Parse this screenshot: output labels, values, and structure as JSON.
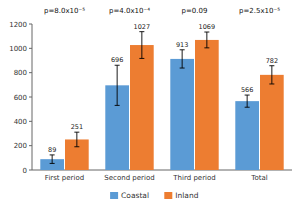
{
  "chart_data": {
    "type": "bar",
    "categories": [
      "First period",
      "Second period",
      "Third period",
      "Total"
    ],
    "series": [
      {
        "name": "Coastal",
        "color": "#5B9BD5",
        "values": [
          89,
          696,
          913,
          566
        ],
        "errors": [
          35,
          165,
          75,
          50
        ]
      },
      {
        "name": "Inland",
        "color": "#ED7D31",
        "values": [
          251,
          1027,
          1069,
          782
        ],
        "errors": [
          60,
          110,
          65,
          75
        ]
      }
    ],
    "annotations": [
      "p=8.0x10⁻⁵",
      "p=4.0x10⁻⁴",
      "p=0.09",
      "p=2.5x10⁻⁵"
    ],
    "ylim": [
      0,
      1200
    ],
    "yticks": [
      0,
      200,
      400,
      600,
      800,
      1000,
      1200
    ],
    "data_labels": true,
    "legend": "bottom",
    "grid": false
  }
}
